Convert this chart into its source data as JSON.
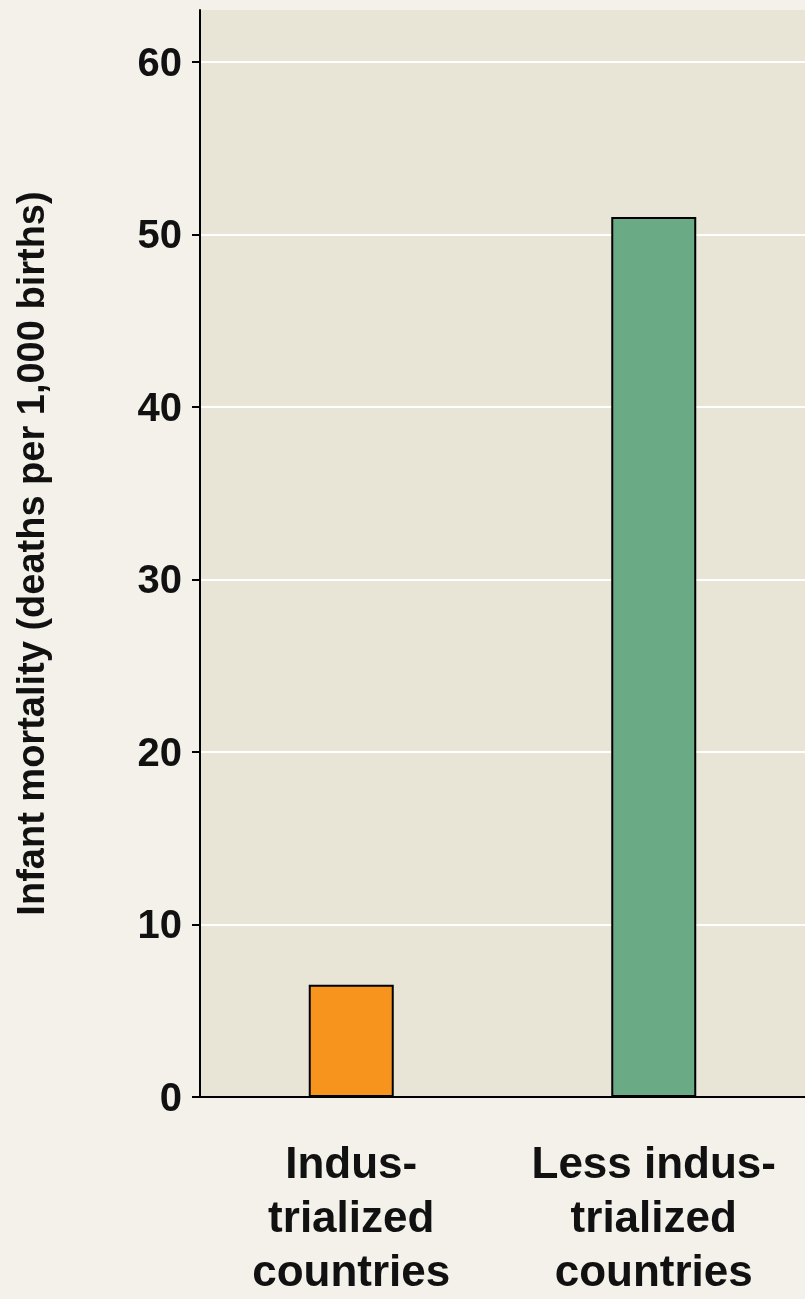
{
  "chart_data": {
    "type": "bar",
    "ylabel": "Infant mortality (deaths per 1,000 births)",
    "categories": [
      "Indus-\ntrialized\ncountries",
      "Less indus-\ntrialized\ncountries"
    ],
    "values": [
      6.5,
      51
    ],
    "colors": [
      "#f7941d",
      "#6aaa84"
    ],
    "ylim": [
      0,
      63
    ],
    "yticks": [
      0,
      10,
      20,
      30,
      40,
      50,
      60
    ],
    "grid": "y"
  }
}
